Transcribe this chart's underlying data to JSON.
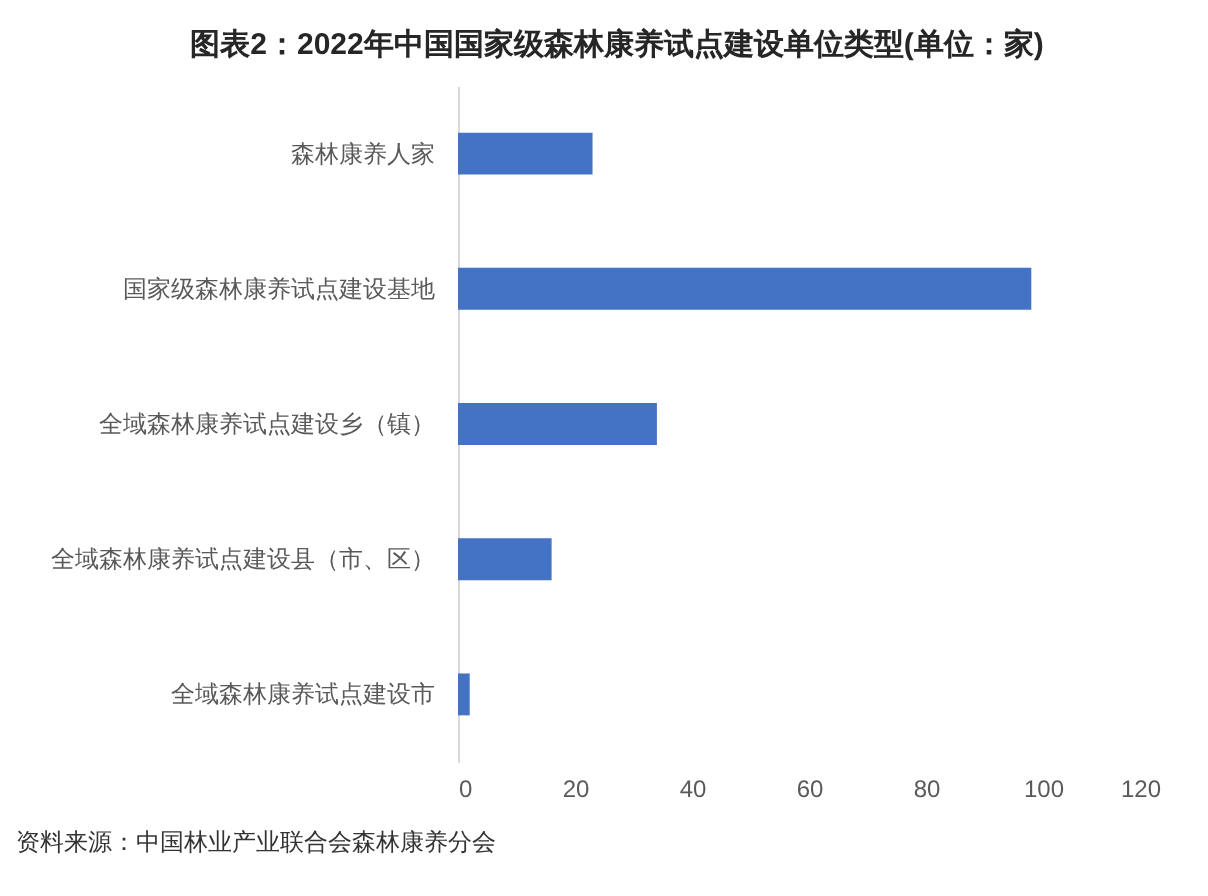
{
  "chart_data": {
    "type": "bar",
    "orientation": "horizontal",
    "title": "图表2：2022年中国国家级森林康养试点建设单位类型(单位：家)",
    "categories": [
      "森林康养人家",
      "国家级森林康养试点建设基地",
      "全域森林康养试点建设乡（镇）",
      "全域森林康养试点建设县（市、区）",
      "全域森林康养试点建设市"
    ],
    "values": [
      23,
      98,
      34,
      16,
      2
    ],
    "color": "#4472c4",
    "xlim": [
      0,
      120
    ],
    "xticks": [
      0,
      20,
      40,
      60,
      80,
      100,
      120
    ],
    "grid": false,
    "annotations": [
      "资料来源：中国林业产业联合会森林康养分会"
    ]
  }
}
